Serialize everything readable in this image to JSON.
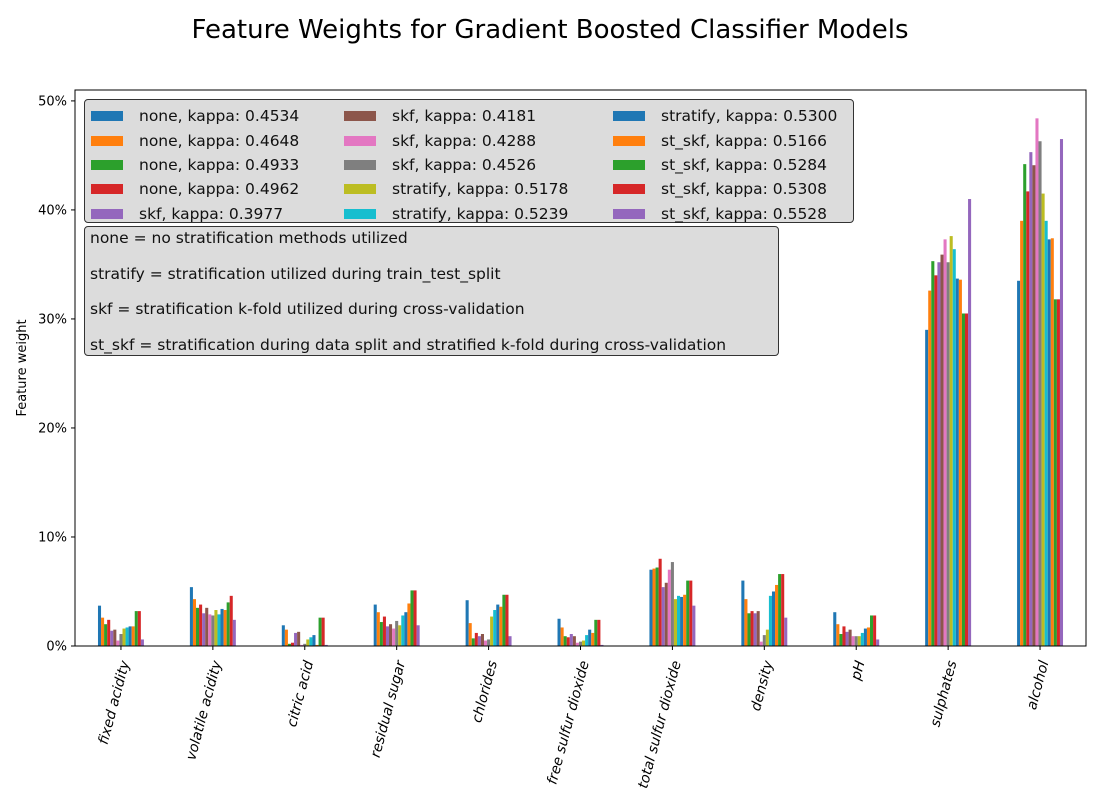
{
  "chart_data": {
    "type": "bar",
    "title": "Feature Weights for Gradient Boosted Classifier Models",
    "xlabel": "",
    "ylabel": "Feature weight",
    "ylim": [
      0,
      51
    ],
    "y_ticks": [
      "0%",
      "10%",
      "20%",
      "30%",
      "40%",
      "50%"
    ],
    "y_tick_values": [
      0,
      10,
      20,
      30,
      40,
      50
    ],
    "grid": false,
    "legend_placement": "top-left",
    "categories": [
      "fixed acidity",
      "volatile acidity",
      "citric acid",
      "residual sugar",
      "chlorides",
      "free sulfur dioxide",
      "total sulfur dioxide",
      "density",
      "pH",
      "sulphates",
      "alcohol"
    ],
    "series": [
      {
        "name": "none, kappa: 0.4534",
        "color": "#1f77b4",
        "values": [
          3.7,
          5.4,
          1.9,
          3.8,
          4.2,
          2.5,
          7.0,
          6.0,
          3.1,
          29.0,
          33.5
        ]
      },
      {
        "name": "none, kappa: 0.4648",
        "color": "#ff7f0e",
        "values": [
          2.6,
          4.3,
          1.5,
          3.1,
          2.1,
          1.7,
          7.1,
          4.3,
          2.0,
          32.6,
          39.0
        ]
      },
      {
        "name": "none, kappa: 0.4933",
        "color": "#2ca02c",
        "values": [
          2.0,
          3.5,
          0.2,
          2.2,
          0.7,
          0.9,
          7.2,
          3.0,
          1.1,
          35.3,
          44.2
        ]
      },
      {
        "name": "none, kappa: 0.4962",
        "color": "#d62728",
        "values": [
          2.4,
          3.8,
          0.3,
          2.7,
          1.2,
          0.8,
          8.0,
          3.2,
          1.8,
          34.0,
          41.7
        ]
      },
      {
        "name": "skf, kappa: 0.3977",
        "color": "#9467bd",
        "values": [
          1.4,
          3.0,
          1.2,
          1.8,
          0.9,
          1.1,
          5.4,
          3.0,
          1.3,
          35.2,
          45.3
        ]
      },
      {
        "name": "skf, kappa: 0.4181",
        "color": "#8c564b",
        "values": [
          1.5,
          3.5,
          1.3,
          2.0,
          1.1,
          0.9,
          5.8,
          3.2,
          1.5,
          35.9,
          44.1
        ]
      },
      {
        "name": "skf, kappa: 0.4288",
        "color": "#e377c2",
        "values": [
          0.5,
          2.9,
          0.1,
          1.6,
          0.5,
          0.3,
          7.0,
          0.4,
          0.9,
          37.3,
          48.4
        ]
      },
      {
        "name": "skf, kappa: 0.4526",
        "color": "#7f7f7f",
        "values": [
          1.1,
          2.8,
          0.2,
          2.3,
          0.6,
          0.4,
          7.7,
          1.0,
          0.9,
          35.2,
          46.3
        ]
      },
      {
        "name": "stratify, kappa: 0.5178",
        "color": "#bcbd22",
        "values": [
          1.6,
          3.3,
          0.6,
          1.9,
          2.7,
          0.5,
          4.3,
          1.5,
          0.9,
          37.6,
          41.5
        ]
      },
      {
        "name": "stratify, kappa: 0.5239",
        "color": "#17becf",
        "values": [
          1.7,
          2.9,
          0.8,
          2.8,
          3.3,
          1.0,
          4.6,
          4.6,
          1.2,
          36.4,
          39.0
        ]
      },
      {
        "name": "stratify, kappa: 0.5300",
        "color": "#1f77b4",
        "values": [
          1.8,
          3.4,
          1.0,
          3.1,
          3.8,
          1.5,
          4.5,
          5.0,
          1.6,
          33.7,
          37.3
        ]
      },
      {
        "name": "st_skf, kappa: 0.5166",
        "color": "#ff7f0e",
        "values": [
          1.8,
          3.3,
          0.1,
          3.9,
          3.6,
          1.2,
          4.7,
          5.6,
          1.7,
          33.6,
          37.4
        ]
      },
      {
        "name": "st_skf, kappa: 0.5284",
        "color": "#2ca02c",
        "values": [
          3.2,
          4.0,
          2.6,
          5.1,
          4.7,
          2.4,
          6.0,
          6.6,
          2.8,
          30.5,
          31.8
        ]
      },
      {
        "name": "st_skf, kappa: 0.5308",
        "color": "#d62728",
        "values": [
          3.2,
          4.6,
          2.6,
          5.1,
          4.7,
          2.4,
          6.0,
          6.6,
          2.8,
          30.5,
          31.8
        ]
      },
      {
        "name": "st_skf, kappa: 0.5528",
        "color": "#9467bd",
        "values": [
          0.6,
          2.4,
          0.1,
          1.9,
          0.9,
          0.1,
          3.7,
          2.6,
          0.6,
          41.0,
          46.5
        ]
      }
    ],
    "annotation_lines": [
      "none = no stratification methods utilized",
      "stratify = stratification utilized during train_test_split",
      "skf = stratification k-fold utilized during cross-validation",
      "st_skf = stratification during data split and stratified k-fold during cross-validation"
    ]
  }
}
